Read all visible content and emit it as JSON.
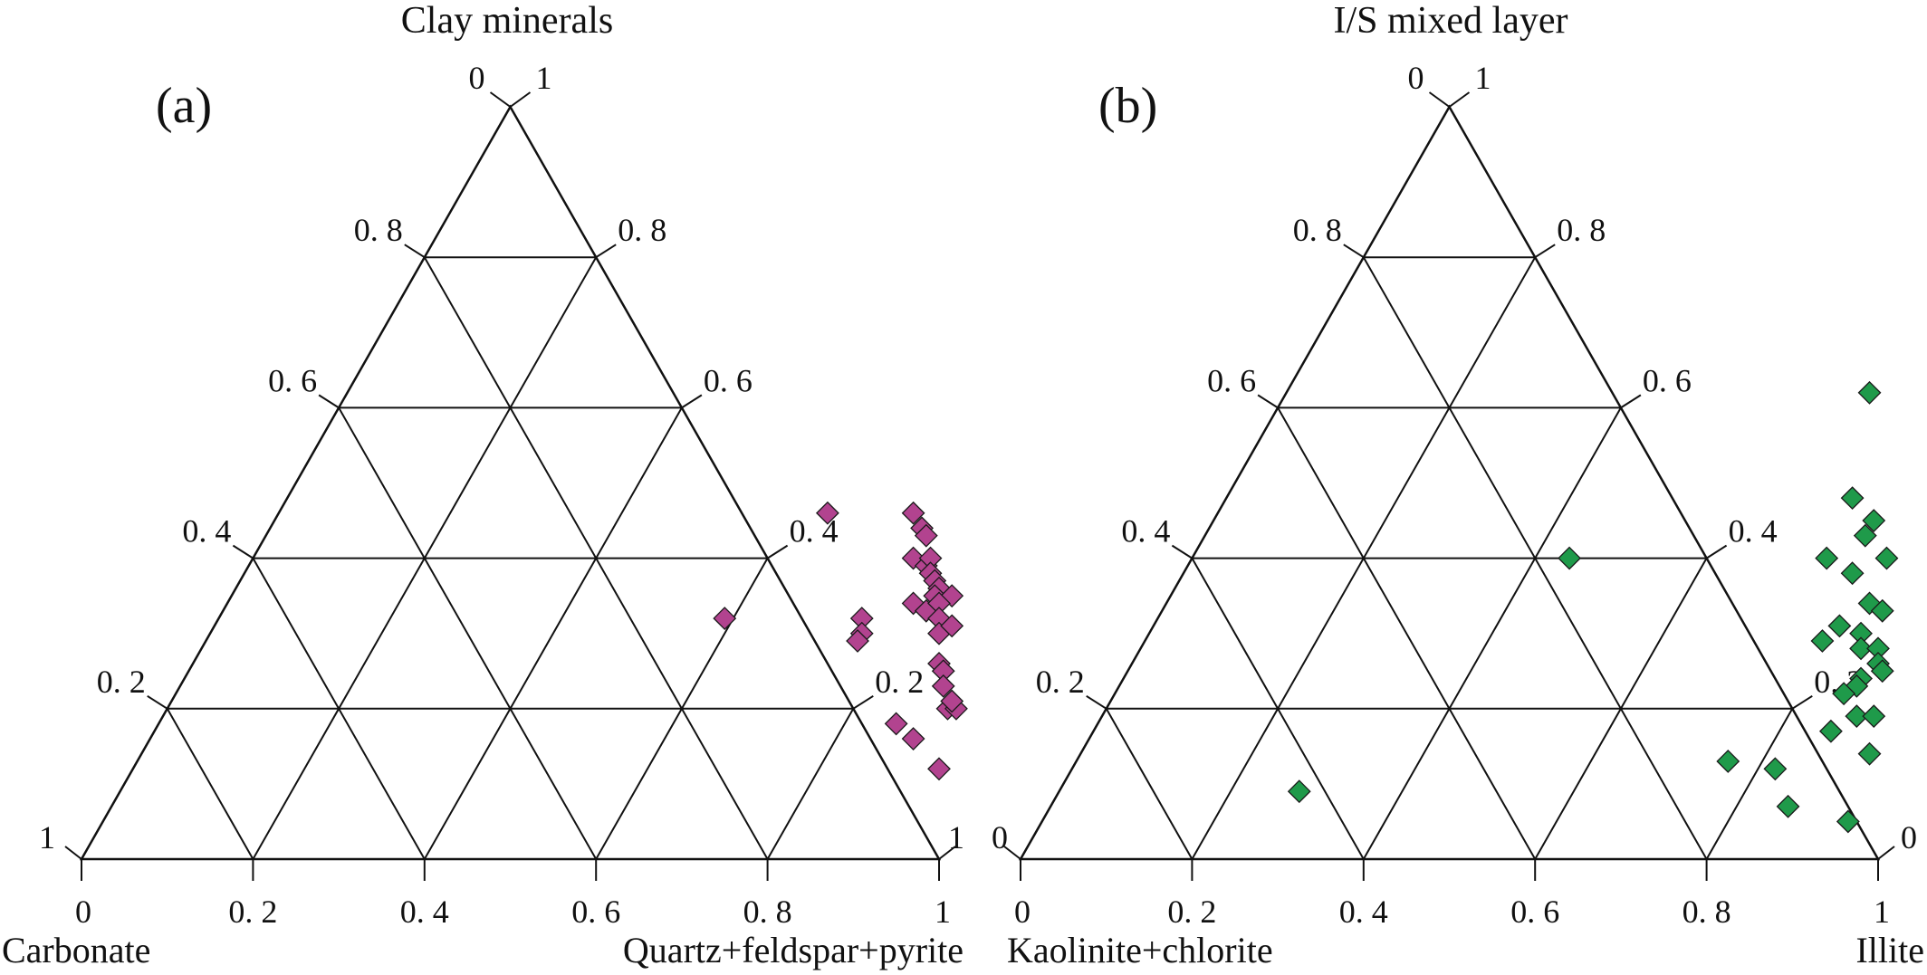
{
  "chart_data": [
    {
      "type": "scatter",
      "subtype": "ternary",
      "panel_label": "(a)",
      "title": "Clay minerals",
      "xlabel_left": "Carbonate",
      "xlabel_right": "Quartz+feldspar+pyrite",
      "bottom_ticks": [
        "0",
        "0. 2",
        "0. 4",
        "0. 6",
        "0. 8",
        "1"
      ],
      "left_ticks": [
        "0",
        "0. 2",
        "0. 4",
        "0. 6",
        "0. 8",
        "1"
      ],
      "right_ticks": [
        "1",
        "0. 8",
        "0. 6",
        "0. 4",
        "0. 2",
        "1"
      ],
      "grid": true,
      "marker": "diamond",
      "marker_color": "#b2438f",
      "points_note": "each point: [Quartz+feldspar+pyrite fraction (x), Clay minerals fraction (y)]",
      "points": [
        [
          0.64,
          0.46
        ],
        [
          0.74,
          0.46
        ],
        [
          0.76,
          0.44
        ],
        [
          0.77,
          0.43
        ],
        [
          0.77,
          0.4
        ],
        [
          0.79,
          0.39
        ],
        [
          0.79,
          0.4
        ],
        [
          0.8,
          0.38
        ],
        [
          0.81,
          0.37
        ],
        [
          0.82,
          0.36
        ],
        [
          0.82,
          0.35
        ],
        [
          0.84,
          0.35
        ],
        [
          0.8,
          0.34
        ],
        [
          0.82,
          0.33
        ],
        [
          0.83,
          0.34
        ],
        [
          0.84,
          0.32
        ],
        [
          0.85,
          0.3
        ],
        [
          0.86,
          0.31
        ],
        [
          0.75,
          0.32
        ],
        [
          0.76,
          0.3
        ],
        [
          0.76,
          0.29
        ],
        [
          0.59,
          0.32
        ],
        [
          0.87,
          0.26
        ],
        [
          0.88,
          0.25
        ],
        [
          0.89,
          0.23
        ],
        [
          0.91,
          0.2
        ],
        [
          0.92,
          0.2
        ],
        [
          0.86,
          0.18
        ],
        [
          0.89,
          0.16
        ],
        [
          0.94,
          0.12
        ],
        [
          0.91,
          0.21
        ]
      ]
    },
    {
      "type": "scatter",
      "subtype": "ternary",
      "panel_label": "(b)",
      "title": "I/S mixed layer",
      "xlabel_left": "Kaolinite+chlorite",
      "xlabel_right": "Illite",
      "bottom_ticks": [
        "0",
        "0. 2",
        "0. 4",
        "0. 6",
        "0. 8",
        "1"
      ],
      "left_ticks": [
        "0",
        "0. 2",
        "0. 4",
        "0. 6",
        "0. 8",
        "0"
      ],
      "right_ticks": [
        "1",
        "0. 8",
        "0. 6",
        "0. 4",
        "0. 2",
        "0"
      ],
      "grid": true,
      "marker": "diamond",
      "marker_color": "#1f9a4a",
      "points_note": "each point: [Illite fraction (x), I/S mixed layer fraction (y)]",
      "points": [
        [
          0.68,
          0.62
        ],
        [
          0.44,
          0.4
        ],
        [
          0.28,
          0.09
        ],
        [
          0.73,
          0.48
        ],
        [
          0.77,
          0.45
        ],
        [
          0.77,
          0.43
        ],
        [
          0.74,
          0.4
        ],
        [
          0.78,
          0.38
        ],
        [
          0.81,
          0.4
        ],
        [
          0.82,
          0.34
        ],
        [
          0.84,
          0.33
        ],
        [
          0.8,
          0.31
        ],
        [
          0.83,
          0.3
        ],
        [
          0.84,
          0.28
        ],
        [
          0.79,
          0.29
        ],
        [
          0.86,
          0.28
        ],
        [
          0.87,
          0.26
        ],
        [
          0.86,
          0.24
        ],
        [
          0.86,
          0.23
        ],
        [
          0.88,
          0.25
        ],
        [
          0.85,
          0.22
        ],
        [
          0.88,
          0.19
        ],
        [
          0.9,
          0.19
        ],
        [
          0.86,
          0.17
        ],
        [
          0.92,
          0.14
        ],
        [
          0.76,
          0.13
        ],
        [
          0.82,
          0.12
        ],
        [
          0.86,
          0.07
        ],
        [
          0.94,
          0.05
        ]
      ]
    }
  ]
}
